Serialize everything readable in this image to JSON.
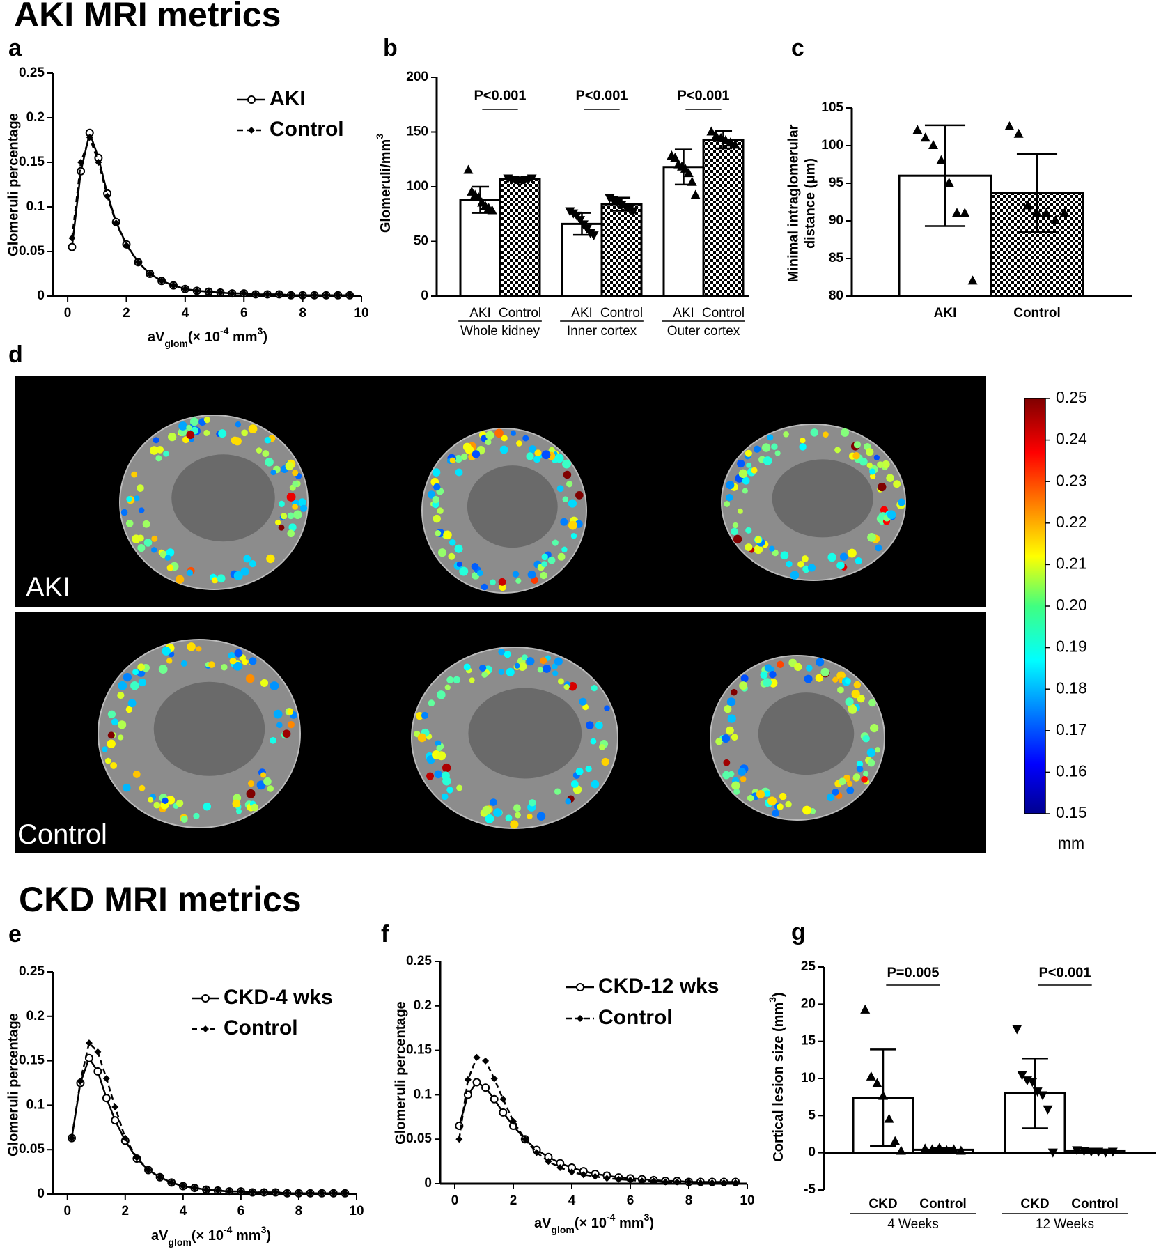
{
  "titles": [
    "AKI MRI metrics",
    "CKD MRI metrics"
  ],
  "chart_data": [
    {
      "type": "line",
      "label": "a",
      "ylabel": "Glomeruli percentage",
      "xlabel": [
        "aV",
        "glom",
        "(× 10",
        "-4",
        " mm",
        "3",
        ")"
      ],
      "x": [
        0.15,
        0.45,
        0.75,
        1.05,
        1.35,
        1.65,
        2.0,
        2.4,
        2.8,
        3.2,
        3.6,
        4.0,
        4.4,
        4.8,
        5.2,
        5.6,
        6.0,
        6.4,
        6.8,
        7.2,
        7.6,
        8.0,
        8.4,
        8.8,
        9.2,
        9.6
      ],
      "series": [
        {
          "name": "AKI",
          "color": "#000000",
          "line": "solid",
          "marker": "open-circle",
          "values": [
            0.055,
            0.14,
            0.183,
            0.155,
            0.115,
            0.083,
            0.058,
            0.038,
            0.025,
            0.017,
            0.012,
            0.008,
            0.006,
            0.005,
            0.004,
            0.003,
            0.003,
            0.002,
            0.002,
            0.002,
            0.001,
            0.001,
            0.001,
            0.001,
            0.001,
            0.001
          ]
        },
        {
          "name": "Control",
          "color": "#000000",
          "line": "dashed",
          "marker": "filled-diamond",
          "values": [
            0.065,
            0.15,
            0.178,
            0.15,
            0.112,
            0.082,
            0.057,
            0.038,
            0.025,
            0.017,
            0.012,
            0.008,
            0.006,
            0.005,
            0.004,
            0.003,
            0.003,
            0.002,
            0.002,
            0.002,
            0.001,
            0.001,
            0.001,
            0.001,
            0.001,
            0.001
          ]
        }
      ],
      "xlim": [
        -0.5,
        10
      ],
      "xticks": [
        0,
        2,
        4,
        6,
        8,
        10
      ],
      "ylim": [
        0,
        0.25
      ],
      "yticks": [
        0,
        0.05,
        0.1,
        0.15,
        0.2,
        0.25
      ]
    },
    {
      "type": "bar",
      "label": "b",
      "ylabel": [
        "Glomeruli/mm",
        "3"
      ],
      "colors": [
        "#ffffff",
        "#000000"
      ],
      "patterns": [
        "solid",
        "checker"
      ],
      "ylim": [
        0,
        200
      ],
      "yticks": [
        0,
        50,
        100,
        150,
        200
      ],
      "groups": [
        {
          "name": "Whole kidney",
          "p_value": "P<0.001",
          "categories": [
            "AKI",
            "Control"
          ],
          "values": [
            88,
            107
          ],
          "errors": [
            12,
            1.5
          ],
          "markers": [
            "triangle-up",
            "triangle-down"
          ],
          "points": [
            [
              115,
              95,
              92,
              90,
              85,
              82,
              80,
              78
            ],
            [
              108,
              107,
              107,
              106,
              106,
              107,
              107,
              108
            ]
          ]
        },
        {
          "name": "Inner cortex",
          "p_value": "P<0.001",
          "categories": [
            "AKI",
            "Control"
          ],
          "values": [
            66,
            84
          ],
          "errors": [
            10,
            6
          ],
          "markers": [
            "triangle-down",
            "triangle-down"
          ],
          "points": [
            [
              78,
              76,
              74,
              70,
              66,
              62,
              58,
              56
            ],
            [
              90,
              88,
              86,
              84,
              82,
              80,
              78
            ]
          ]
        },
        {
          "name": "Outer cortex",
          "p_value": "P<0.001",
          "categories": [
            "AKI",
            "Control"
          ],
          "values": [
            118,
            143
          ],
          "errors": [
            16,
            8
          ],
          "markers": [
            "triangle-up",
            "triangle-up"
          ],
          "points": [
            [
              128,
              126,
              120,
              118,
              116,
              112,
              104,
              92
            ],
            [
              150,
              146,
              144,
              142,
              140,
              138
            ]
          ]
        }
      ]
    },
    {
      "type": "bar",
      "label": "c",
      "ylabel": [
        "Minimal intraglomerular",
        "distance (μm)"
      ],
      "colors": [
        "#ffffff",
        "#000000"
      ],
      "patterns": [
        "solid",
        "checker"
      ],
      "ylim": [
        80,
        105
      ],
      "yticks": [
        80,
        85,
        90,
        95,
        100,
        105
      ],
      "groups": [
        {
          "categories": [
            "AKI",
            "Control"
          ],
          "values": [
            96,
            93.7
          ],
          "errors": [
            6.7,
            5.2
          ],
          "markers": [
            "triangle-up",
            "triangle-up"
          ],
          "points": [
            [
              102,
              101,
              100,
              98,
              95,
              91,
              91,
              82
            ],
            [
              102.5,
              101.5,
              92,
              91,
              91,
              90,
              91
            ]
          ]
        }
      ]
    },
    {
      "type": "colorbar",
      "label": "d",
      "panel_labels": [
        "AKI",
        "Control"
      ],
      "colormap": "jet",
      "clim": [
        0.15,
        0.25
      ],
      "ticks": [
        0.15,
        0.16,
        0.17,
        0.18,
        0.19,
        {
          "value": 0.2,
          "label": "0.20"
        },
        0.21,
        0.22,
        0.23,
        0.24,
        0.25
      ],
      "unit": "mm"
    },
    {
      "type": "line",
      "label": "e",
      "ylabel": "Glomeruli percentage",
      "xlabel": [
        "aV",
        "glom",
        "(× 10",
        "-4",
        " mm",
        "3",
        ")"
      ],
      "x": [
        0.15,
        0.45,
        0.75,
        1.05,
        1.35,
        1.65,
        2.0,
        2.4,
        2.8,
        3.2,
        3.6,
        4.0,
        4.4,
        4.8,
        5.2,
        5.6,
        6.0,
        6.4,
        6.8,
        7.2,
        7.6,
        8.0,
        8.4,
        8.8,
        9.2,
        9.6
      ],
      "series": [
        {
          "name": "CKD-4 wks",
          "color": "#000000",
          "line": "solid",
          "marker": "open-circle",
          "values": [
            0.063,
            0.125,
            0.153,
            0.138,
            0.108,
            0.083,
            0.06,
            0.04,
            0.027,
            0.019,
            0.013,
            0.009,
            0.007,
            0.005,
            0.004,
            0.003,
            0.003,
            0.002,
            0.002,
            0.002,
            0.001,
            0.001,
            0.001,
            0.001,
            0.001,
            0.001
          ]
        },
        {
          "name": "Control",
          "color": "#000000",
          "line": "dashed",
          "marker": "filled-diamond",
          "values": [
            0.063,
            0.127,
            0.17,
            0.16,
            0.13,
            0.098,
            0.063,
            0.041,
            0.027,
            0.019,
            0.013,
            0.009,
            0.007,
            0.005,
            0.004,
            0.003,
            0.003,
            0.002,
            0.002,
            0.002,
            0.001,
            0.001,
            0.001,
            0.001,
            0.001,
            0.001
          ]
        }
      ],
      "xlim": [
        -0.5,
        10
      ],
      "xticks": [
        0,
        2,
        4,
        6,
        8,
        10
      ],
      "ylim": [
        0,
        0.25
      ],
      "yticks": [
        0,
        0.05,
        0.1,
        0.15,
        0.2,
        0.25
      ]
    },
    {
      "type": "line",
      "label": "f",
      "ylabel": "Glomeruli percentage",
      "xlabel": [
        "aV",
        "glom",
        "(× 10",
        "-4",
        " mm",
        "3",
        ")"
      ],
      "x": [
        0.15,
        0.45,
        0.75,
        1.05,
        1.35,
        1.65,
        2.0,
        2.4,
        2.8,
        3.2,
        3.6,
        4.0,
        4.4,
        4.8,
        5.2,
        5.6,
        6.0,
        6.4,
        6.8,
        7.2,
        7.6,
        8.0,
        8.4,
        8.8,
        9.2,
        9.6
      ],
      "series": [
        {
          "name": "CKD-12 wks",
          "color": "#000000",
          "line": "solid",
          "marker": "open-circle",
          "values": [
            0.065,
            0.1,
            0.114,
            0.108,
            0.095,
            0.08,
            0.065,
            0.05,
            0.038,
            0.03,
            0.023,
            0.018,
            0.014,
            0.011,
            0.009,
            0.007,
            0.006,
            0.005,
            0.004,
            0.003,
            0.003,
            0.002,
            0.002,
            0.002,
            0.002,
            0.002
          ]
        },
        {
          "name": "Control",
          "color": "#000000",
          "line": "dashed",
          "marker": "filled-diamond",
          "values": [
            0.05,
            0.117,
            0.142,
            0.138,
            0.118,
            0.095,
            0.07,
            0.05,
            0.035,
            0.025,
            0.018,
            0.013,
            0.01,
            0.008,
            0.006,
            0.005,
            0.004,
            0.003,
            0.003,
            0.002,
            0.002,
            0.002,
            0.001,
            0.001,
            0.001,
            0.001
          ]
        }
      ],
      "xlim": [
        -0.5,
        10
      ],
      "xticks": [
        0,
        2,
        4,
        6,
        8,
        10
      ],
      "ylim": [
        0,
        0.25
      ],
      "yticks": [
        0,
        0.05,
        0.1,
        0.15,
        0.2,
        0.25
      ]
    },
    {
      "type": "bar",
      "label": "g",
      "ylabel": [
        "Cortical lesion size (mm",
        "3",
        ")"
      ],
      "colors": [
        "#ffffff",
        "#ffffff"
      ],
      "patterns": [
        "solid",
        "solid"
      ],
      "ylim": [
        -5,
        25
      ],
      "yticks": [
        -5,
        0,
        5,
        10,
        15,
        20,
        25
      ],
      "groups": [
        {
          "name": "4 Weeks",
          "p_value": "P=0.005",
          "categories": [
            "CKD",
            "Control"
          ],
          "values": [
            7.4,
            0.4
          ],
          "errors": [
            6.5,
            0.2
          ],
          "markers": [
            "triangle-up",
            "triangle-up"
          ],
          "points": [
            [
              19.2,
              10.2,
              9.3,
              7.6,
              4.5,
              1.5,
              0.2
            ],
            [
              0.5,
              0.4,
              0.6,
              0.3,
              0.4,
              0.2
            ]
          ]
        },
        {
          "name": "12 Weeks",
          "p_value": "P<0.001",
          "categories": [
            "CKD",
            "Control"
          ],
          "values": [
            8,
            0.3
          ],
          "errors": [
            4.7,
            0.1
          ],
          "markers": [
            "triangle-down",
            "triangle-down"
          ],
          "points": [
            [
              16.7,
              10.5,
              9.8,
              9.6,
              8.3,
              7.8,
              5.9,
              0.1
            ],
            [
              0.4,
              0.3,
              0.2,
              0.2,
              0.1,
              0.2
            ]
          ]
        }
      ]
    }
  ]
}
